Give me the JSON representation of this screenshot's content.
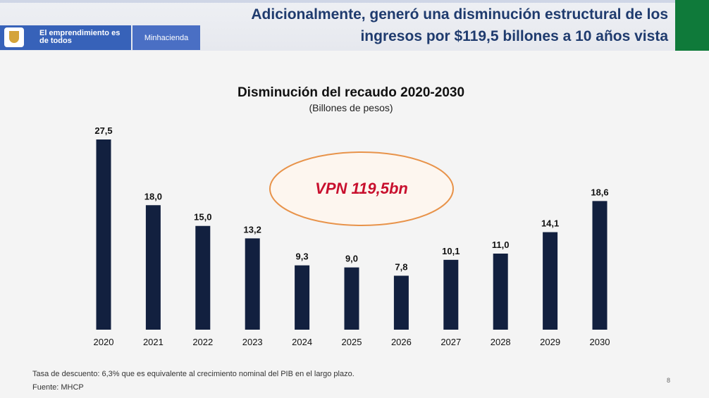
{
  "header": {
    "title": "Adicionalmente, generó una disminución estructural de los ingresos por $119,5 billones a 10 años vista",
    "slogan": "El emprendimiento es de todos",
    "ministry": "Minhacienda"
  },
  "chart_data": {
    "type": "bar",
    "title": "Disminución del recaudo 2020-2030",
    "subtitle": "(Billones de pesos)",
    "xlabel": "",
    "ylabel": "",
    "categories": [
      "2020",
      "2021",
      "2022",
      "2023",
      "2024",
      "2025",
      "2026",
      "2027",
      "2028",
      "2029",
      "2030"
    ],
    "values": [
      27.5,
      18.0,
      15.0,
      13.2,
      9.3,
      9.0,
      7.8,
      10.1,
      11.0,
      14.1,
      18.6
    ],
    "value_labels": [
      "27,5",
      "18,0",
      "15,0",
      "13,2",
      "9,3",
      "9,0",
      "7,8",
      "10,1",
      "11,0",
      "14,1",
      "18,6"
    ],
    "ylim": [
      0,
      27.5
    ],
    "grid": false,
    "bar_color": "#12203f",
    "annotation": "VPN 119,5bn",
    "annotation_color": "#c8102e",
    "annotation_border_color": "#e8934a"
  },
  "footer": {
    "note": "Tasa de descuento: 6,3% que es equivalente al crecimiento nominal del PIB en el largo plazo.",
    "source": "Fuente: MHCP",
    "page_number": "8"
  }
}
